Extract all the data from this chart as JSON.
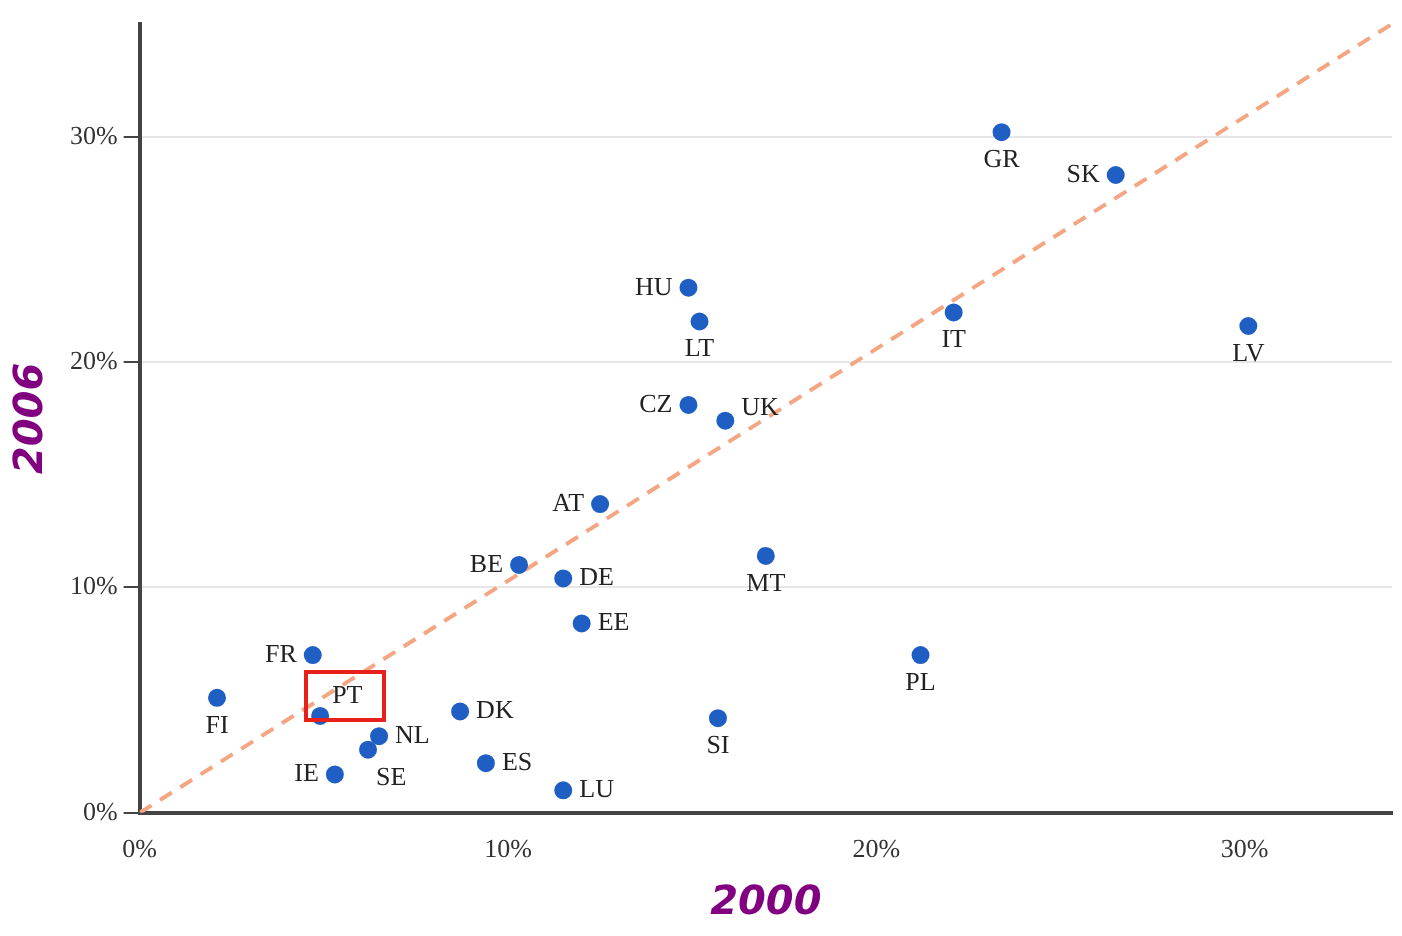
{
  "chart_data": {
    "type": "scatter",
    "xlabel": "2000",
    "ylabel": "2006",
    "xlim": [
      0,
      34
    ],
    "ylim": [
      0,
      35
    ],
    "xticks": [
      {
        "value": 0,
        "label": "0%"
      },
      {
        "value": 10,
        "label": "10%"
      },
      {
        "value": 20,
        "label": "20%"
      },
      {
        "value": 30,
        "label": "30%"
      }
    ],
    "yticks": [
      {
        "value": 0,
        "label": "0%"
      },
      {
        "value": 10,
        "label": "10%"
      },
      {
        "value": 20,
        "label": "20%"
      },
      {
        "value": 30,
        "label": "30%"
      }
    ],
    "grid": "y",
    "legend": false,
    "marker": "circle",
    "series": [
      {
        "color": "#1f5fc4",
        "x": [
          23.4,
          26.5,
          14.9,
          15.2,
          22.1,
          30.1,
          14.9,
          15.9,
          12.5,
          10.3,
          11.5,
          17.0,
          12.0,
          4.7,
          21.2,
          2.1,
          4.9,
          6.5,
          8.7,
          15.7,
          6.2,
          5.3,
          9.4,
          11.5
        ],
        "values": [
          30.2,
          28.3,
          23.3,
          21.8,
          22.2,
          21.6,
          18.1,
          17.4,
          13.7,
          11.0,
          10.4,
          11.4,
          8.4,
          7.0,
          7.0,
          5.1,
          4.3,
          3.4,
          4.5,
          4.2,
          2.8,
          1.7,
          2.2,
          1.0
        ]
      },
      {
        "type": "line",
        "color": "#f4a582",
        "line_style": "dashed",
        "marker": "none",
        "x": [
          0,
          34
        ],
        "values": [
          0,
          35
        ]
      }
    ],
    "annotations": [
      {
        "text": "GR",
        "x": 23.4,
        "y": 30.2
      },
      {
        "text": "SK",
        "x": 26.5,
        "y": 28.3
      },
      {
        "text": "HU",
        "x": 14.9,
        "y": 23.3
      },
      {
        "text": "LT",
        "x": 15.2,
        "y": 21.8
      },
      {
        "text": "IT",
        "x": 22.1,
        "y": 22.2
      },
      {
        "text": "LV",
        "x": 30.1,
        "y": 21.6
      },
      {
        "text": "CZ",
        "x": 14.9,
        "y": 18.1
      },
      {
        "text": "UK",
        "x": 15.9,
        "y": 17.4
      },
      {
        "text": "AT",
        "x": 12.5,
        "y": 13.7
      },
      {
        "text": "BE",
        "x": 10.3,
        "y": 11.0
      },
      {
        "text": "DE",
        "x": 11.5,
        "y": 10.4
      },
      {
        "text": "MT",
        "x": 17.0,
        "y": 11.4
      },
      {
        "text": "EE",
        "x": 12.0,
        "y": 8.4
      },
      {
        "text": "FR",
        "x": 4.7,
        "y": 7.0
      },
      {
        "text": "PL",
        "x": 21.2,
        "y": 7.0
      },
      {
        "text": "FI",
        "x": 2.1,
        "y": 5.1
      },
      {
        "text": "PT",
        "x": 4.9,
        "y": 4.3
      },
      {
        "text": "NL",
        "x": 6.5,
        "y": 3.4
      },
      {
        "text": "DK",
        "x": 8.7,
        "y": 4.5
      },
      {
        "text": "SI",
        "x": 15.7,
        "y": 4.2
      },
      {
        "text": "SE",
        "x": 6.2,
        "y": 2.8
      },
      {
        "text": "IE",
        "x": 5.3,
        "y": 1.7
      },
      {
        "text": "ES",
        "x": 9.4,
        "y": 2.2
      },
      {
        "text": "LU",
        "x": 11.5,
        "y": 1.0
      }
    ]
  }
}
